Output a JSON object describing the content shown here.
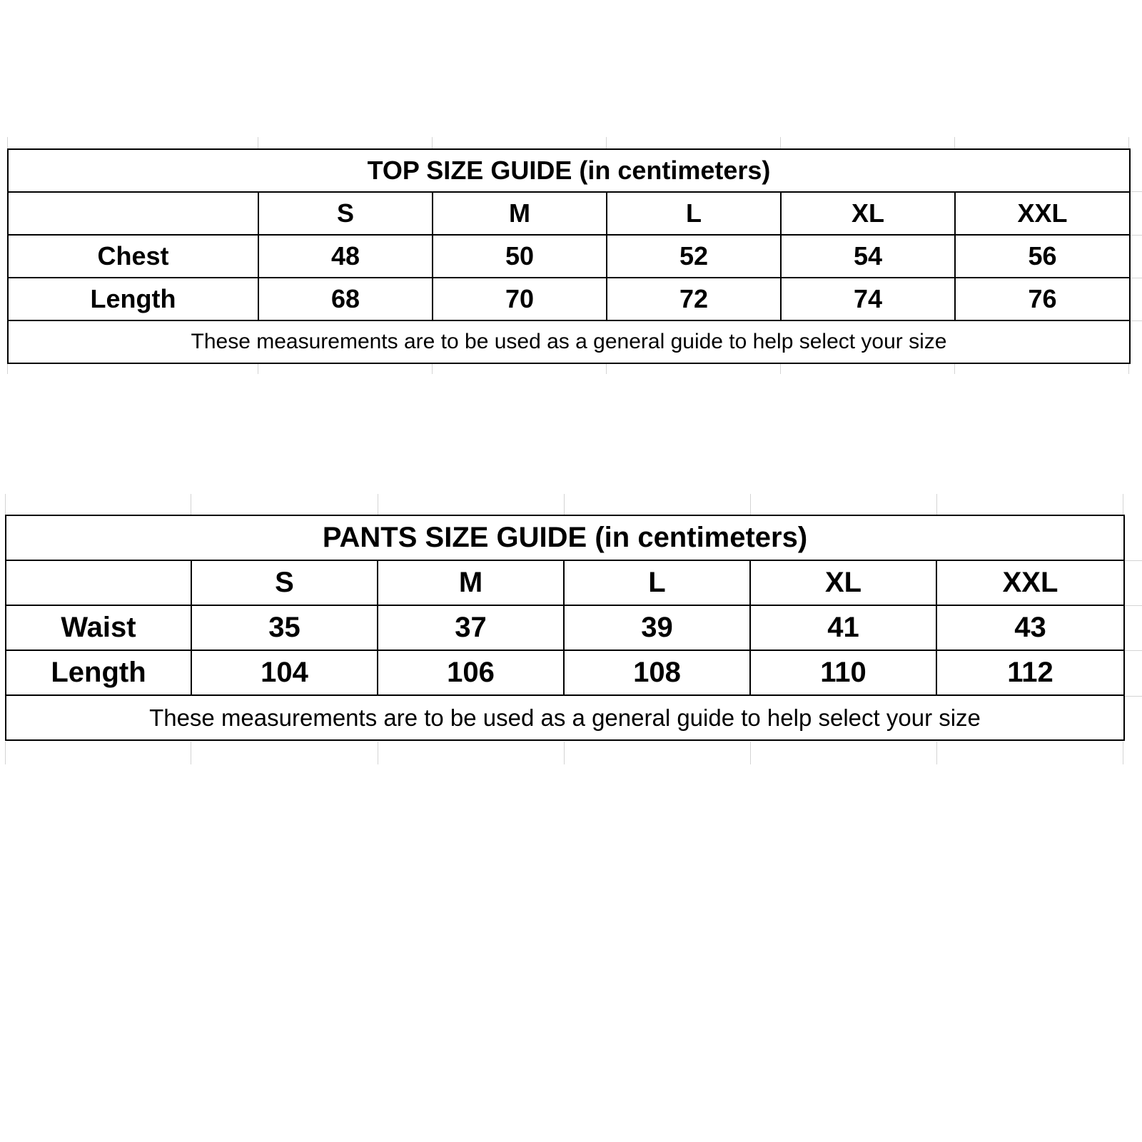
{
  "top_guide": {
    "title": "TOP SIZE GUIDE (in centimeters)",
    "sizes": [
      "S",
      "M",
      "L",
      "XL",
      "XXL"
    ],
    "rows": [
      {
        "label": "Chest",
        "values": [
          "48",
          "50",
          "52",
          "54",
          "56"
        ]
      },
      {
        "label": "Length",
        "values": [
          "68",
          "70",
          "72",
          "74",
          "76"
        ]
      }
    ],
    "note": "These measurements are to be used as a general guide to help select your size"
  },
  "pants_guide": {
    "title": "PANTS SIZE GUIDE (in centimeters)",
    "sizes": [
      "S",
      "M",
      "L",
      "XL",
      "XXL"
    ],
    "rows": [
      {
        "label": "Waist",
        "values": [
          "35",
          "37",
          "39",
          "41",
          "43"
        ]
      },
      {
        "label": "Length",
        "values": [
          "104",
          "106",
          "108",
          "110",
          "112"
        ]
      }
    ],
    "note": "These measurements are to be used as a general guide to help select your size"
  }
}
